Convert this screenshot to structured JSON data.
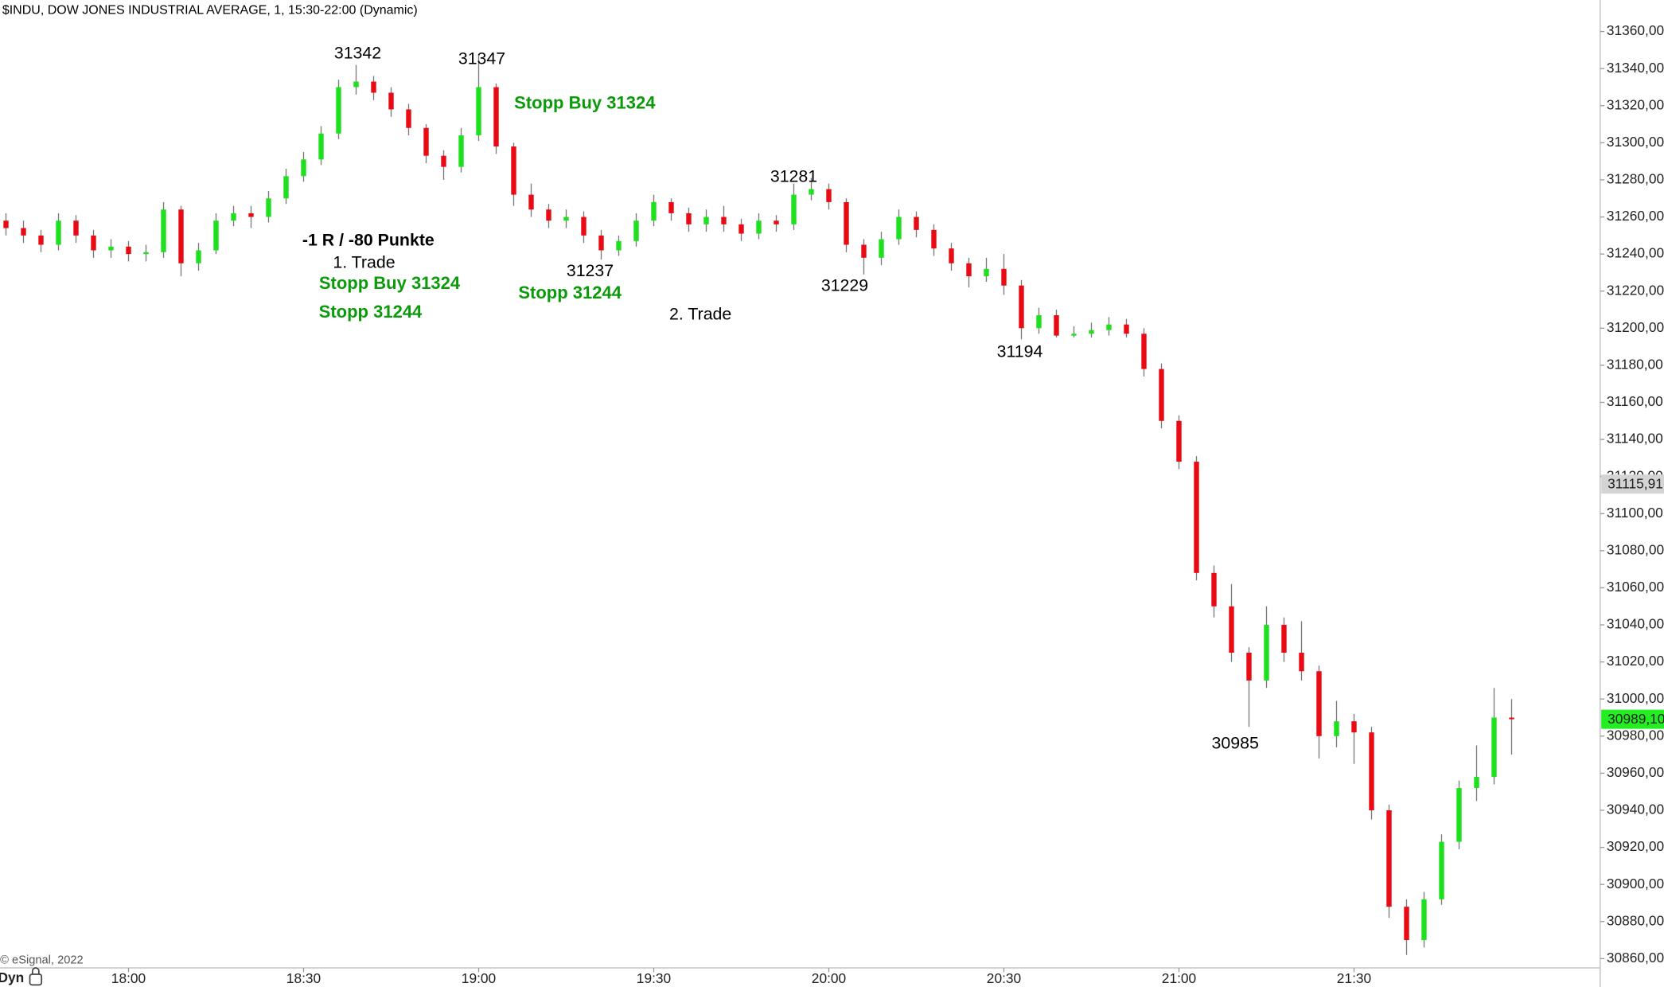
{
  "chart_data": {
    "type": "candlestick",
    "title": "* $INDU, DOW JONES INDUSTRIAL AVERAGE, 1, 15:30-22:00 (Dynamic)",
    "copyright": "© eSignal, 2022",
    "mode": "Dyn",
    "x": [
      "17:39",
      "17:42",
      "17:45",
      "17:48",
      "17:51",
      "17:54",
      "17:57",
      "18:00",
      "18:03",
      "18:06",
      "18:09",
      "18:12",
      "18:15",
      "18:18",
      "18:21",
      "18:24",
      "18:27",
      "18:30",
      "18:33",
      "18:36",
      "18:39",
      "18:42",
      "18:45",
      "18:48",
      "18:51",
      "18:54",
      "18:57",
      "19:00",
      "19:03",
      "19:06",
      "19:09",
      "19:12",
      "19:15",
      "19:18",
      "19:21",
      "19:24",
      "19:27",
      "19:30",
      "19:33",
      "19:36",
      "19:39",
      "19:42",
      "19:45",
      "19:48",
      "19:51",
      "19:54",
      "19:57",
      "20:00",
      "20:03",
      "20:06",
      "20:09",
      "20:12",
      "20:15",
      "20:18",
      "20:21",
      "20:24",
      "20:27",
      "20:30",
      "20:33",
      "20:36",
      "20:39",
      "20:42",
      "20:45",
      "20:48",
      "20:51",
      "20:54",
      "20:57",
      "21:00",
      "21:03",
      "21:06",
      "21:09",
      "21:12",
      "21:15",
      "21:18",
      "21:21",
      "21:24",
      "21:27",
      "21:30",
      "21:33",
      "21:36",
      "21:39",
      "21:42",
      "21:45",
      "21:48",
      "21:51",
      "21:54",
      "21:57"
    ],
    "open": [
      31258,
      31254,
      31250,
      31245,
      31258,
      31250,
      31242,
      31244,
      31240,
      31241,
      31264,
      31235,
      31242,
      31258,
      31262,
      31260,
      31270,
      31282,
      31291,
      31305,
      31330,
      31333,
      31327,
      31318,
      31308,
      31293,
      31287,
      31304,
      31330,
      31298,
      31272,
      31264,
      31258,
      31260,
      31250,
      31242,
      31247,
      31258,
      31268,
      31262,
      31256,
      31260,
      31256,
      31251,
      31258,
      31256,
      31272,
      31275,
      31268,
      31245,
      31238,
      31248,
      31260,
      31253,
      31243,
      31235,
      31228,
      31232,
      31223,
      31200,
      31207,
      31196,
      31197,
      31199,
      31202,
      31197,
      31178,
      31150,
      31128,
      31068,
      31050,
      31025,
      31010,
      31040,
      31025,
      31015,
      30980,
      30988,
      30982,
      30940,
      30888,
      30870,
      30892,
      30923,
      30952,
      30958,
      30990
    ],
    "high": [
      31262,
      31258,
      31253,
      31262,
      31261,
      31253,
      31248,
      31247,
      31245,
      31268,
      31266,
      31246,
      31262,
      31266,
      31266,
      31274,
      31286,
      31295,
      31309,
      31334,
      31342,
      31336,
      31330,
      31321,
      31310,
      31296,
      31308,
      31347,
      31332,
      31300,
      31278,
      31267,
      31264,
      31263,
      31253,
      31250,
      31262,
      31272,
      31270,
      31265,
      31264,
      31266,
      31259,
      31262,
      31261,
      31278,
      31281,
      31278,
      31270,
      31248,
      31252,
      31264,
      31263,
      31256,
      31246,
      31238,
      31238,
      31240,
      31226,
      31211,
      31210,
      31201,
      31203,
      31206,
      31205,
      31200,
      31181,
      31153,
      31131,
      31072,
      31062,
      31028,
      31050,
      31044,
      31042,
      31018,
      30999,
      30992,
      30985,
      30943,
      30892,
      30896,
      30927,
      30956,
      30975,
      31006,
      31000
    ],
    "low": [
      31250,
      31246,
      31241,
      31242,
      31246,
      31238,
      31238,
      31236,
      31236,
      31238,
      31228,
      31231,
      31240,
      31255,
      31254,
      31257,
      31267,
      31279,
      31288,
      31302,
      31326,
      31323,
      31314,
      31304,
      31289,
      31280,
      31284,
      31301,
      31294,
      31266,
      31260,
      31254,
      31254,
      31246,
      31237,
      31239,
      31244,
      31255,
      31258,
      31252,
      31252,
      31252,
      31247,
      31248,
      31252,
      31253,
      31269,
      31264,
      31241,
      31229,
      31234,
      31245,
      31249,
      31239,
      31231,
      31222,
      31225,
      31218,
      31194,
      31197,
      31195,
      31195,
      31195,
      31196,
      31195,
      31174,
      31146,
      31124,
      31064,
      31044,
      31020,
      30985,
      31006,
      31020,
      31010,
      30968,
      30974,
      30965,
      30935,
      30882,
      30862,
      30866,
      30889,
      30919,
      30945,
      30954,
      30970
    ],
    "close": [
      31254,
      31250,
      31245,
      31258,
      31250,
      31242,
      31244,
      31240,
      31241,
      31264,
      31235,
      31242,
      31258,
      31262,
      31260,
      31270,
      31282,
      31291,
      31305,
      31330,
      31333,
      31327,
      31318,
      31308,
      31293,
      31287,
      31304,
      31330,
      31298,
      31272,
      31264,
      31258,
      31260,
      31250,
      31242,
      31247,
      31258,
      31268,
      31262,
      31256,
      31260,
      31256,
      31251,
      31258,
      31256,
      31272,
      31275,
      31268,
      31245,
      31238,
      31248,
      31260,
      31253,
      31243,
      31235,
      31228,
      31232,
      31223,
      31200,
      31207,
      31196,
      31197,
      31199,
      31202,
      31197,
      31178,
      31150,
      31128,
      31068,
      31050,
      31025,
      31010,
      31040,
      31025,
      31015,
      30980,
      30988,
      30982,
      30940,
      30888,
      30870,
      30892,
      30923,
      30952,
      30958,
      30990,
      30989.1
    ],
    "colors": {
      "up": "#1fe01f",
      "down": "#ea0a14",
      "wick": "#7a7a7a"
    },
    "ylim": [
      30855,
      31377
    ],
    "yticks": [
      {
        "value": 30860,
        "label": "30860,00"
      },
      {
        "value": 30880,
        "label": "30880,00"
      },
      {
        "value": 30900,
        "label": "30900,00"
      },
      {
        "value": 30920,
        "label": "30920,00"
      },
      {
        "value": 30940,
        "label": "30940,00"
      },
      {
        "value": 30960,
        "label": "30960,00"
      },
      {
        "value": 30980,
        "label": "30980,00"
      },
      {
        "value": 31000,
        "label": "31000,00"
      },
      {
        "value": 31020,
        "label": "31020,00"
      },
      {
        "value": 31040,
        "label": "31040,00"
      },
      {
        "value": 31060,
        "label": "31060,00"
      },
      {
        "value": 31080,
        "label": "31080,00"
      },
      {
        "value": 31100,
        "label": "31100,00"
      },
      {
        "value": 31120,
        "label": "31120,00"
      },
      {
        "value": 31140,
        "label": "31140,00"
      },
      {
        "value": 31160,
        "label": "31160,00"
      },
      {
        "value": 31180,
        "label": "31180,00"
      },
      {
        "value": 31200,
        "label": "31200,00"
      },
      {
        "value": 31220,
        "label": "31220,00"
      },
      {
        "value": 31240,
        "label": "31240,00"
      },
      {
        "value": 31260,
        "label": "31260,00"
      },
      {
        "value": 31280,
        "label": "31280,00"
      },
      {
        "value": 31300,
        "label": "31300,00"
      },
      {
        "value": 31320,
        "label": "31320,00"
      },
      {
        "value": 31340,
        "label": "31340,00"
      },
      {
        "value": 31360,
        "label": "31360,00"
      }
    ],
    "xticks": [
      "18:00",
      "18:30",
      "19:00",
      "19:30",
      "20:00",
      "20:30",
      "21:00",
      "21:30"
    ],
    "reference_price": {
      "value": 31115.91,
      "label": "31115,91",
      "color": "#d4d4d4"
    },
    "last_price": {
      "value": 30989.1,
      "label": "30989,10",
      "color": "#22ee22"
    },
    "annotations": [
      "31342",
      "31347",
      "Stopp Buy 31324",
      "-1 R / -80 Punkte",
      "1. Trade",
      "Stopp Buy 31324",
      "Stopp 31244",
      "31237",
      "Stopp 31244",
      "2. Trade",
      "31281",
      "31229",
      "31194",
      "30985"
    ]
  }
}
